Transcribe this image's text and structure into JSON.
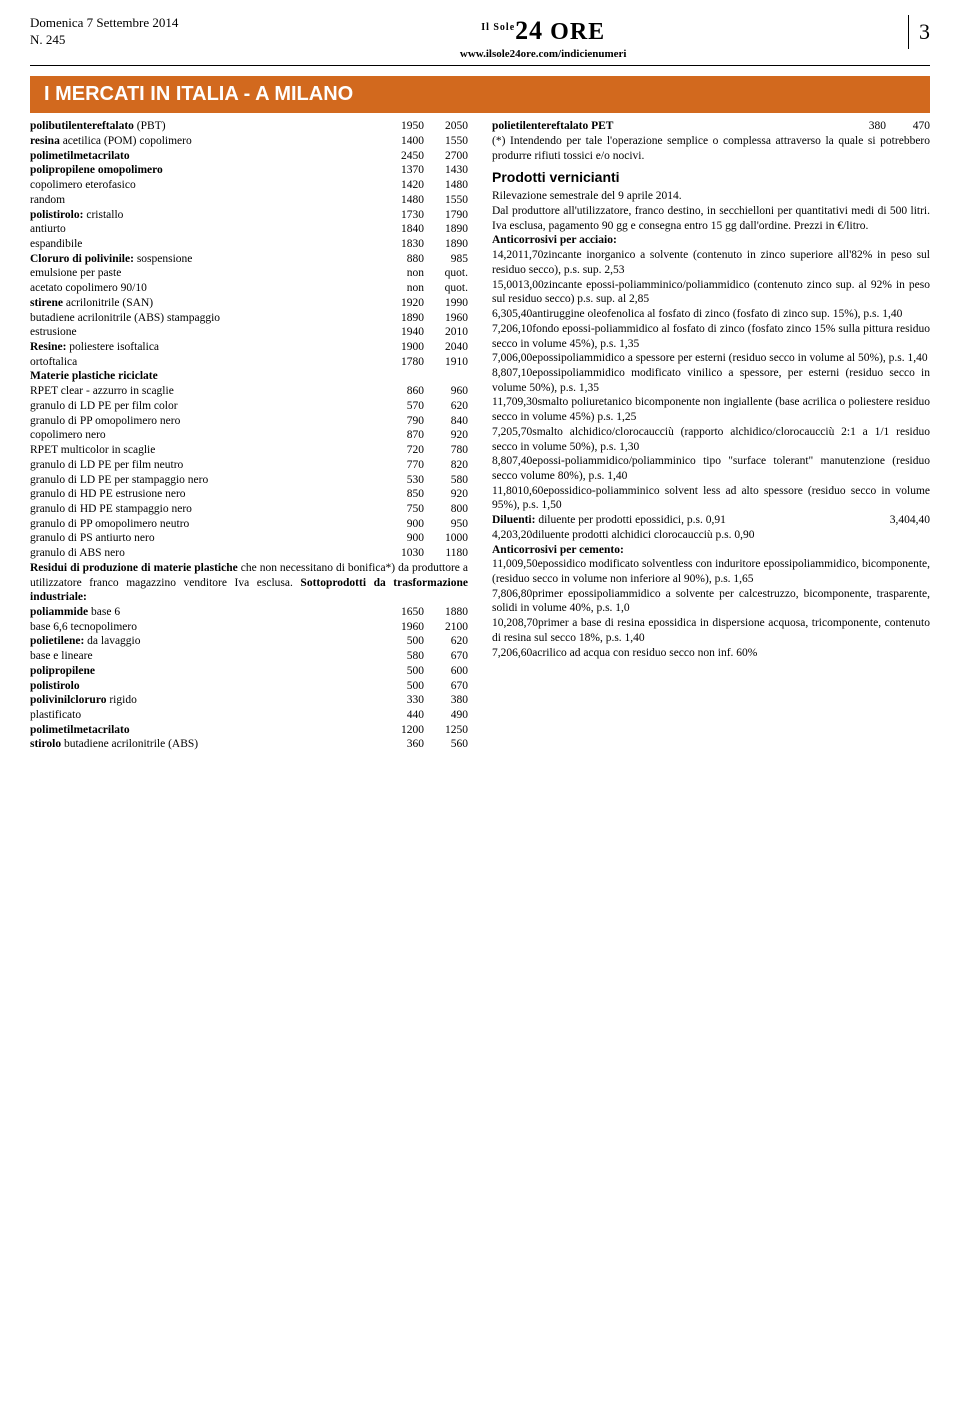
{
  "header": {
    "date": "Domenica 7 Settembre 2014",
    "issue": "N. 245",
    "logo_prefix": "Il Sole",
    "logo_main": "24 ORE",
    "url": "www.ilsole24ore.com/indicienumeri",
    "page": "3"
  },
  "banner": "I MERCATI IN ITALIA - A MILANO",
  "left": {
    "rows": [
      {
        "label": "polibutilentereftalato (PBT)",
        "v1": "1950",
        "v2": "2050",
        "b": false,
        "bp": true
      },
      {
        "label": "resina acetilica (POM) copolimero",
        "v1": "1400",
        "v2": "1550",
        "b": false,
        "bp": true
      },
      {
        "label": "polimetilmetacrilato",
        "v1": "2450",
        "v2": "2700",
        "b": true
      },
      {
        "label": "polipropilene omopolimero",
        "v1": "1370",
        "v2": "1430",
        "b": true
      },
      {
        "label": "copolimero eterofasico",
        "v1": "1420",
        "v2": "1480"
      },
      {
        "label": "random",
        "v1": "1480",
        "v2": "1550"
      },
      {
        "label": "polistirolo: cristallo",
        "v1": "1730",
        "v2": "1790",
        "bp": true
      },
      {
        "label": "antiurto",
        "v1": "1840",
        "v2": "1890"
      },
      {
        "label": "espandibile",
        "v1": "1830",
        "v2": "1890"
      },
      {
        "label": "Cloruro di polivinile: sospensione",
        "v1": "880",
        "v2": "985",
        "bp": true
      },
      {
        "label": "emulsione per paste",
        "v1": "non",
        "v2": "quot."
      },
      {
        "label": "acetato copolimero 90/10",
        "v1": "non",
        "v2": "quot."
      },
      {
        "label": "stirene acrilonitrile (SAN)",
        "v1": "1920",
        "v2": "1990",
        "bp": true
      },
      {
        "label": "butadiene acrilonitrile (ABS) stampaggio",
        "v1": "1890",
        "v2": "1960"
      },
      {
        "label": "estrusione",
        "v1": "1940",
        "v2": "2010"
      },
      {
        "label": "Resine: poliestere isoftalica",
        "v1": "1900",
        "v2": "2040",
        "bp": true
      },
      {
        "label": "ortoftalica",
        "v1": "1780",
        "v2": "1910"
      }
    ],
    "matplast_head": "Materie plastiche riciclate",
    "matplast": [
      {
        "label": "RPET clear - azzurro in scaglie",
        "v1": "860",
        "v2": "960"
      },
      {
        "label": "granulo di LD PE per film color",
        "v1": "570",
        "v2": "620"
      },
      {
        "label": "granulo di PP omopolimero nero",
        "v1": "790",
        "v2": "840"
      },
      {
        "label": "copolimero nero",
        "v1": "870",
        "v2": "920"
      },
      {
        "label": "RPET multicolor in scaglie",
        "v1": "720",
        "v2": "780"
      },
      {
        "label": "granulo di LD PE per film neutro",
        "v1": "770",
        "v2": "820"
      },
      {
        "label": "granulo di LD PE per stampaggio nero",
        "v1": "530",
        "v2": "580"
      },
      {
        "label": "granulo di HD PE estrusione nero",
        "v1": "850",
        "v2": "920"
      },
      {
        "label": "granulo di HD PE stampaggio nero",
        "v1": "750",
        "v2": "800"
      },
      {
        "label": "granulo di PP omopolimero neutro",
        "v1": "900",
        "v2": "950"
      },
      {
        "label": "granulo di PS antiurto nero",
        "v1": "900",
        "v2": "1000"
      },
      {
        "label": "granulo di ABS nero",
        "v1": "1030",
        "v2": "1180"
      }
    ],
    "residui_note": "Residui di produzione di materie plastiche che non necessitano di bonifica*) da produttore a utilizzatore franco magazzino venditore Iva esclusa.",
    "residui_note_bold": "Residui di produzione di materie plastiche",
    "residui_note_rest": " che non necessitano di bonifica*) da produttore a utilizzatore franco magazzino venditore Iva esclusa. ",
    "sotto_head": "Sottoprodotti da trasformazione industriale:",
    "sotto": [
      {
        "label": "poliammide base 6",
        "v1": "1650",
        "v2": "1880",
        "bp": true
      },
      {
        "label": "base 6,6 tecnopolimero",
        "v1": "1960",
        "v2": "2100"
      },
      {
        "label": "polietilene: da lavaggio",
        "v1": "500",
        "v2": "620",
        "bp": true
      },
      {
        "label": "base e lineare",
        "v1": "580",
        "v2": "670"
      },
      {
        "label": "polipropilene",
        "v1": "500",
        "v2": "600",
        "b": true
      },
      {
        "label": "polistirolo",
        "v1": "500",
        "v2": "670",
        "b": true
      },
      {
        "label": "polivinilcloruro rigido",
        "v1": "330",
        "v2": "380",
        "bp": true
      },
      {
        "label": "plastificato",
        "v1": "440",
        "v2": "490"
      },
      {
        "label": "polimetilmetacrilato",
        "v1": "1200",
        "v2": "1250",
        "b": true
      },
      {
        "label": "stirolo butadiene acrilonitrile (ABS)",
        "v1": "360",
        "v2": "560",
        "bp": true
      }
    ]
  },
  "right": {
    "pet": {
      "label": "polietilentereftalato PET",
      "v1": "380",
      "v2": "470",
      "bp": true
    },
    "pet_note": "(*) Intendendo per tale l'operazione semplice o complessa attraverso la quale si potrebbero produrre rifiuti tossici e/o nocivi.",
    "paint_head": "Prodotti verniciaanti",
    "paint_head_actual": "Prodotti vernicianti",
    "rilevazione": "Rilevazione semestrale del 9 aprile 2014.",
    "produttore": "Dal produttore all'utilizzatore, franco destino, in secchielloni per quantitativi medi di 500 litri. Iva esclusa, pagamento 90 gg e consegna entro 15 gg dall'ordine. Prezzi in €/litro.",
    "antiacciaio_head": "Anticorrosivi per acciaio:",
    "acciaio": [
      {
        "text": "zincante inorganico a solvente (contenuto in zinco superiore all'82% in peso sul residuo secco), p.s. sup. 2,53",
        "v1": "11,70",
        "v2": "14,20"
      },
      {
        "text": "zincante epossi-poliamminico/poliammidico (contenuto zinco sup. al 92% in peso sul residuo secco) p.s. sup. al 2,85",
        "v1": "13,00",
        "v2": "15,00"
      },
      {
        "text": "antiruggine oleofenolica al fosfato di zinco (fosfato di zinco sup. 15%), p.s. 1,40",
        "v1": "5,40",
        "v2": "6,30"
      },
      {
        "text": "fondo epossi-poliammidico al fosfato di zinco (fosfato zinco 15% sulla pittura residuo secco in volume 45%), p.s. 1,35",
        "v1": "6,10",
        "v2": "7,20"
      },
      {
        "text": "epossipoliammidico a spessore per esterni (residuo secco in volume al 50%), p.s. 1,40",
        "v1": "6,00",
        "v2": "7,00"
      },
      {
        "text": "epossipoliammidico modificato vinilico a spessore, per esterni (residuo secco in volume 50%), p.s. 1,35",
        "v1": "7,10",
        "v2": "8,80"
      },
      {
        "text": "smalto poliuretanico bicomponente non ingiallente (base acrilica o poliestere residuo secco in volume 45%) p.s. 1,25",
        "v1": "9,30",
        "v2": "11,70"
      },
      {
        "text": "smalto alchidico/clorocaucciù (rapporto alchidico/clorocaucciù 2:1 a 1/1 residuo secco in volume 50%), p.s. 1,30",
        "v1": "5,70",
        "v2": "7,20"
      },
      {
        "text": "epossi-poliammidico/poliamminico tipo \"surface tolerant\" manutenzione (residuo secco volume 80%), p.s. 1,40",
        "v1": "7,40",
        "v2": "8,80"
      },
      {
        "text": "epossidico-poliamminico solvent less ad alto spessore (residuo secco in volume 95%), p.s. 1,50",
        "v1": "10,60",
        "v2": "11,80"
      }
    ],
    "diluenti_head": "Diluenti:",
    "diluenti": [
      {
        "text": "diluente per prodotti epossidici, p.s. 0,91",
        "v1": "3,40",
        "v2": "4,40"
      },
      {
        "text": "diluente prodotti alchidici clorocaucciù p.s. 0,90",
        "v1": "3,20",
        "v2": "4,20"
      }
    ],
    "anticemento_head": "Anticorrosivi per cemento:",
    "cemento": [
      {
        "text": "epossidico modificato solventless con induritore epossipoliammidico, bicomponente, (residuo secco in volume non inferiore al 90%), p.s. 1,65",
        "v1": "9,50",
        "v2": "11,00"
      },
      {
        "text": "primer epossipoliammidico a solvente per calcestruzzo, bicomponente, trasparente, solidi in volume 40%, p.s. 1,0",
        "v1": "6,80",
        "v2": "7,80"
      },
      {
        "text": "primer a base di resina epossidica in dispersione acquosa, tricomponente, contenuto di resina sul secco 18%, p.s. 1,40",
        "v1": "8,70",
        "v2": "10,20"
      },
      {
        "text": "acrilico ad acqua con residuo secco non inf. 60%",
        "v1": "6,60",
        "v2": "7,20"
      }
    ]
  }
}
